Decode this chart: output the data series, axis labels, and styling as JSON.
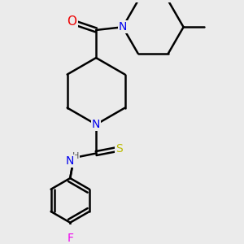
{
  "bg_color": "#ebebeb",
  "bond_color": "#000000",
  "bond_width": 1.8,
  "atom_colors": {
    "N": "#0000ee",
    "O": "#ee0000",
    "S": "#bbbb00",
    "F": "#ee00ee",
    "H": "#555555",
    "C": "#000000"
  },
  "font_size": 9,
  "fig_size": [
    3.0,
    3.0
  ],
  "dpi": 100
}
